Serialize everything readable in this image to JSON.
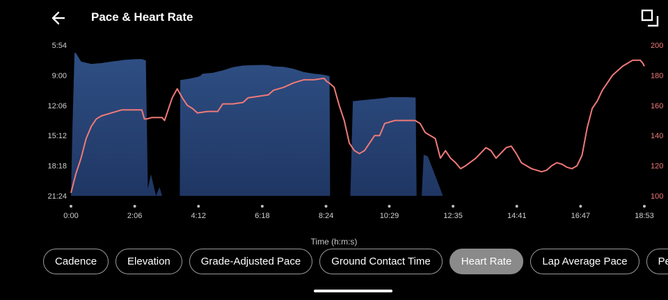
{
  "header": {
    "title": "Pace & Heart Rate",
    "back_icon": "arrow-left-icon",
    "expand_icon": "expand-icon"
  },
  "chart_data": {
    "type": "area",
    "x_title": "Time (h:m:s)",
    "x_ticks": [
      "0:00",
      "2:06",
      "4:12",
      "6:18",
      "8:24",
      "10:29",
      "12:35",
      "14:41",
      "16:47",
      "18:53"
    ],
    "x_tick_seconds": [
      0,
      126,
      252,
      378,
      504,
      629,
      755,
      881,
      1007,
      1133
    ],
    "xlim_seconds": [
      0,
      1133
    ],
    "y_left_ticks": [
      "5:54",
      "9:00",
      "12:06",
      "15:12",
      "18:18",
      "21:24"
    ],
    "y_left_ticks_seconds": [
      354,
      540,
      726,
      912,
      1098,
      1284
    ],
    "y_left_range_seconds_per_km": [
      354,
      1284
    ],
    "y_left_inverted": true,
    "y_right_ticks": [
      "200",
      "180",
      "160",
      "140",
      "120",
      "100"
    ],
    "y_right_range": [
      100,
      200
    ],
    "series": [
      {
        "color": "#2c4a7c",
        "x": [
          0,
          3,
          7,
          10,
          20,
          40,
          60,
          80,
          95,
          105,
          130,
          140,
          145,
          148,
          152,
          158,
          168,
          175,
          180,
          185,
          200,
          215,
          216,
          235,
          250,
          255,
          260,
          280,
          300,
          320,
          340,
          360,
          380,
          390,
          400,
          420,
          440,
          460,
          480,
          495,
          504,
          511,
          512,
          550,
          552,
          557,
          620,
          630,
          636,
          642,
          660,
          678,
          681,
          683,
          685,
          687,
          689,
          693,
          697,
          705,
          715,
          735,
          750,
          757,
          760,
          775,
          800,
          818,
          820,
          845,
          890,
          925,
          945,
          950,
          955,
          960,
          970,
          980,
          990,
          1000,
          1010,
          1050,
          1060,
          1062,
          1075,
          1090,
          1100,
          1110,
          1120,
          1133
        ],
        "y": [
          1284,
          850,
          400,
          405,
          455,
          470,
          465,
          455,
          450,
          445,
          440,
          440,
          445,
          450,
          1240,
          1150,
          1284,
          1230,
          1284,
          1284,
          1284,
          1284,
          570,
          560,
          550,
          545,
          530,
          525,
          510,
          490,
          480,
          478,
          476,
          478,
          485,
          488,
          500,
          520,
          530,
          535,
          540,
          545,
          1284,
          1284,
          1284,
          700,
          680,
          675,
          675,
          675,
          675,
          677,
          677,
          1284,
          1284,
          1284,
          1284,
          1284,
          1030,
          1040,
          1120,
          1284,
          1284,
          1284,
          1284,
          1284,
          1284,
          1284,
          1284,
          1284,
          1284,
          1284,
          1284,
          1284,
          1284,
          1284,
          1284,
          1284,
          1284,
          1284,
          1284,
          1284,
          1284,
          1284,
          1284,
          1284,
          1284,
          1284,
          1284,
          1284
        ]
      },
      {
        "color": "#f07a78",
        "x": [
          0,
          10,
          20,
          30,
          40,
          50,
          60,
          80,
          100,
          120,
          140,
          145,
          150,
          160,
          170,
          180,
          185,
          190,
          195,
          200,
          210,
          220,
          230,
          240,
          250,
          270,
          290,
          300,
          320,
          340,
          350,
          370,
          390,
          400,
          420,
          440,
          460,
          480,
          500,
          505,
          510,
          520,
          530,
          540,
          550,
          560,
          570,
          580,
          600,
          610,
          620,
          640,
          660,
          670,
          680,
          690,
          700,
          720,
          730,
          740,
          750,
          760,
          770,
          780,
          800,
          820,
          830,
          840,
          860,
          870,
          880,
          890,
          900,
          910,
          920,
          930,
          940,
          950,
          960,
          970,
          980,
          990,
          1000,
          1010,
          1020,
          1030,
          1040,
          1050,
          1060,
          1070,
          1080,
          1090,
          1100,
          1110,
          1120,
          1125,
          1130,
          1133
        ],
        "y": [
          102,
          115,
          125,
          138,
          146,
          151,
          153,
          155,
          157,
          157,
          157,
          151,
          151,
          152,
          152,
          152,
          150,
          155,
          160,
          165,
          171,
          165,
          160,
          158,
          155,
          156,
          156,
          161,
          161,
          162,
          165,
          166,
          167,
          170,
          172,
          175,
          177,
          177,
          178,
          176,
          175,
          172,
          160,
          150,
          135,
          130,
          128,
          130,
          140,
          140,
          148,
          150,
          150,
          150,
          150,
          148,
          142,
          138,
          125,
          130,
          125,
          122,
          118,
          120,
          125,
          132,
          130,
          125,
          132,
          133,
          128,
          122,
          120,
          118,
          117,
          116,
          117,
          120,
          122,
          121,
          119,
          118,
          120,
          127,
          145,
          158,
          163,
          170,
          175,
          180,
          183,
          186,
          188,
          190,
          190,
          190,
          188,
          186
        ]
      }
    ]
  },
  "tabs": [
    {
      "label": "Cadence",
      "active": false
    },
    {
      "label": "Elevation",
      "active": false
    },
    {
      "label": "Grade-Adjusted Pace",
      "active": false
    },
    {
      "label": "Ground Contact Time",
      "active": false
    },
    {
      "label": "Heart Rate",
      "active": true
    },
    {
      "label": "Lap Average Pace",
      "active": false
    },
    {
      "label": "Perf",
      "active": false
    }
  ],
  "colors": {
    "background": "#000000",
    "pace_fill_top": "#2f4f84",
    "pace_fill_bottom": "#1f3663",
    "heart_rate_line": "#f07a78",
    "axis_left_text": "#d0d0d0",
    "axis_right_text": "#f07a78",
    "active_tab": "#8a8a8a"
  }
}
